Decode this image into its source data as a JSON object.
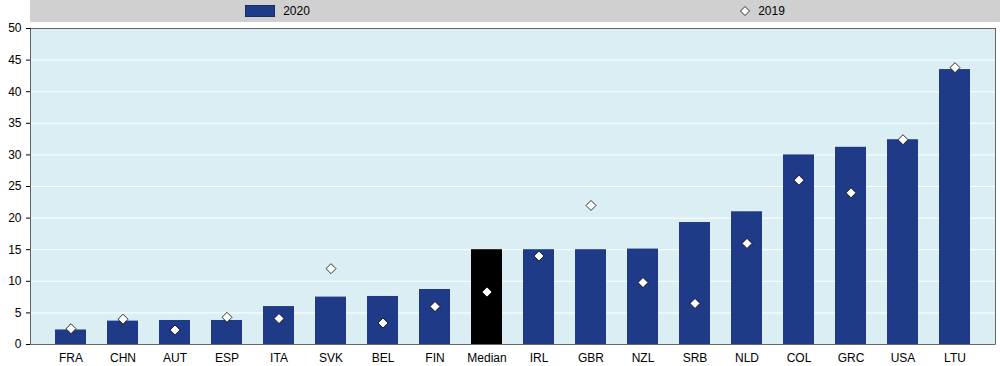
{
  "chart_data": {
    "type": "bar",
    "categories": [
      "FRA",
      "CHN",
      "AUT",
      "ESP",
      "ITA",
      "SVK",
      "BEL",
      "FIN",
      "Median",
      "IRL",
      "GBR",
      "NZL",
      "SRB",
      "NLD",
      "COL",
      "GRC",
      "USA",
      "LTU"
    ],
    "series": [
      {
        "name": "2020",
        "type": "bar",
        "color": "#1f3a87",
        "colors": [
          "#1f3a87",
          "#1f3a87",
          "#1f3a87",
          "#1f3a87",
          "#1f3a87",
          "#1f3a87",
          "#1f3a87",
          "#1f3a87",
          "#000000",
          "#1f3a87",
          "#1f3a87",
          "#1f3a87",
          "#1f3a87",
          "#1f3a87",
          "#1f3a87",
          "#1f3a87",
          "#1f3a87",
          "#1f3a87"
        ],
        "values": [
          2.3,
          3.7,
          3.8,
          3.8,
          6.0,
          7.5,
          7.6,
          8.7,
          15.0,
          15.0,
          15.0,
          15.1,
          19.3,
          21.0,
          30.0,
          31.2,
          32.4,
          43.5
        ]
      },
      {
        "name": "2019",
        "type": "scatter",
        "marker": "diamond",
        "color": "#ffffff",
        "values": [
          2.5,
          4.0,
          2.3,
          4.3,
          4.1,
          12.0,
          3.4,
          6.0,
          8.3,
          14.0,
          22.0,
          9.8,
          6.5,
          16.0,
          26.0,
          24.0,
          32.4,
          43.8
        ]
      }
    ],
    "ylim": [
      0,
      50
    ],
    "yticks": [
      0,
      5,
      10,
      15,
      20,
      25,
      30,
      35,
      40,
      45,
      50
    ],
    "grid": true,
    "legend": "top"
  }
}
